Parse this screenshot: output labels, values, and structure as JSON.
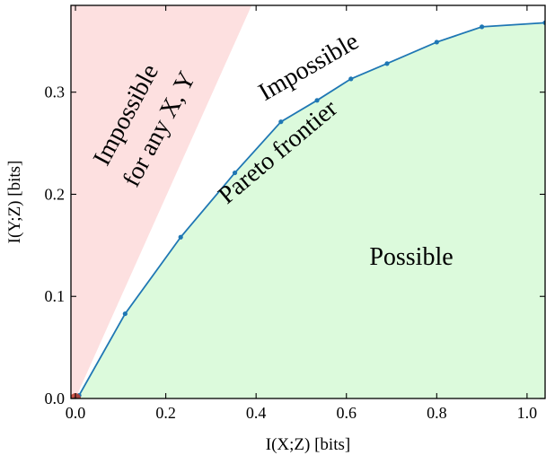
{
  "chart_data": {
    "type": "line",
    "xlabel": "I(X;Z) [bits]",
    "ylabel": "I(Y;Z) [bits]",
    "xlim": [
      -0.01,
      1.04
    ],
    "ylim": [
      0.0,
      0.385
    ],
    "x_ticks": [
      "0.0",
      "0.2",
      "0.4",
      "0.6",
      "0.8",
      "1.0"
    ],
    "y_ticks": [
      "0.0",
      "0.1",
      "0.2",
      "0.3"
    ],
    "x_tick_values": [
      0.0,
      0.2,
      0.4,
      0.6,
      0.8,
      1.0
    ],
    "y_tick_values": [
      0.0,
      0.1,
      0.2,
      0.3
    ],
    "grid": false,
    "series": [
      {
        "color": "#1f77b4",
        "x": [
          0.0,
          0.008,
          0.11,
          0.233,
          0.353,
          0.455,
          0.535,
          0.61,
          0.69,
          0.8,
          0.9,
          1.04
        ],
        "y": [
          0.0,
          0.003,
          0.083,
          0.158,
          0.221,
          0.271,
          0.292,
          0.313,
          0.328,
          0.349,
          0.364,
          0.368
        ]
      }
    ],
    "trivial_point": {
      "x": 0.0,
      "y": 0.0,
      "color": "#c0392b"
    },
    "impossible_any_region": {
      "color": "#fde0e0",
      "boundary_top_x": 0.39
    },
    "possible_region": {
      "color": "#dcfadc"
    },
    "annotations": {
      "impossible_any_line1": "Impossible",
      "impossible_any_line2": "for any X, Y",
      "impossible": "Impossible",
      "pareto": "Pareto frontier",
      "possible": "Possible"
    }
  }
}
